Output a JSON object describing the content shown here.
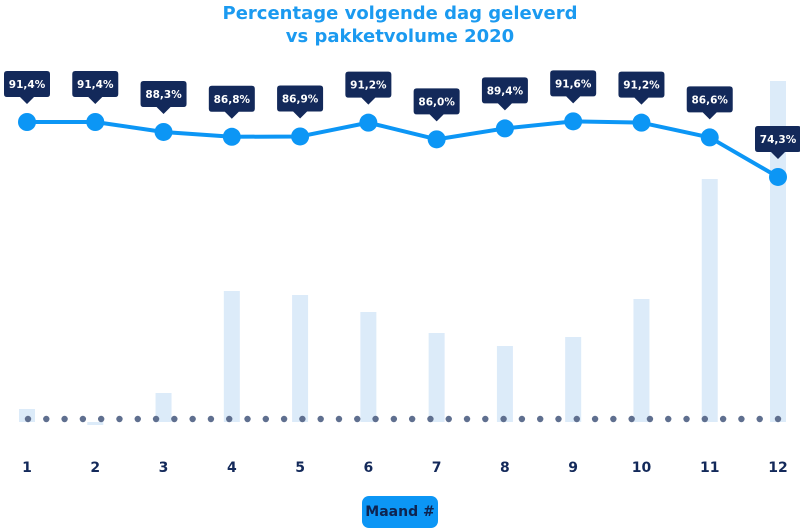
{
  "chart_data": {
    "type": "line+bar",
    "title": "Percentage volgende dag geleverd",
    "subtitle": "vs pakketvolume 2020",
    "xlabel": "Maand #",
    "categories": [
      "1",
      "2",
      "3",
      "4",
      "5",
      "6",
      "7",
      "8",
      "9",
      "10",
      "11",
      "12"
    ],
    "series": [
      {
        "type": "line",
        "values": [
          91.4,
          91.4,
          88.3,
          86.8,
          86.9,
          91.2,
          86.0,
          89.4,
          91.6,
          91.2,
          86.6,
          74.3
        ],
        "labels": [
          "91,4%",
          "91,4%",
          "88,3%",
          "86,8%",
          "86,9%",
          "91,2%",
          "86,0%",
          "89,4%",
          "91,6%",
          "91,2%",
          "86,6%",
          "74,3%"
        ]
      },
      {
        "type": "bar",
        "relative_values": [
          13,
          -3,
          29,
          131,
          127,
          110,
          89,
          76,
          85,
          123,
          243,
          341
        ]
      }
    ],
    "grid": false,
    "colors": {
      "line": "#0c96f5",
      "label_bg": "#13295a",
      "bar": "#dcebf9",
      "dots": "#5f6f8f",
      "title": "#1b9af0",
      "tick": "#13295a"
    }
  }
}
